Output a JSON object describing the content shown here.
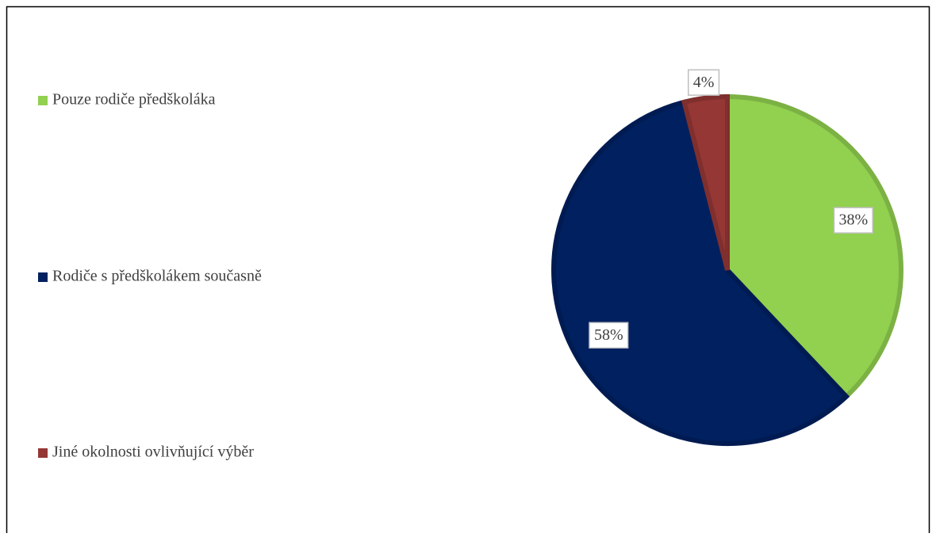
{
  "chart_data": {
    "type": "pie",
    "categories": [
      "Pouze rodiče předškoláka",
      "Rodiče s předškolákem současně",
      "Jiné okolnosti ovlivňující výběr"
    ],
    "values": [
      38,
      58,
      4
    ],
    "value_labels": [
      "38%",
      "58%",
      "4%"
    ],
    "colors": [
      "#92d050",
      "#002060",
      "#953735"
    ],
    "legend": "left"
  }
}
